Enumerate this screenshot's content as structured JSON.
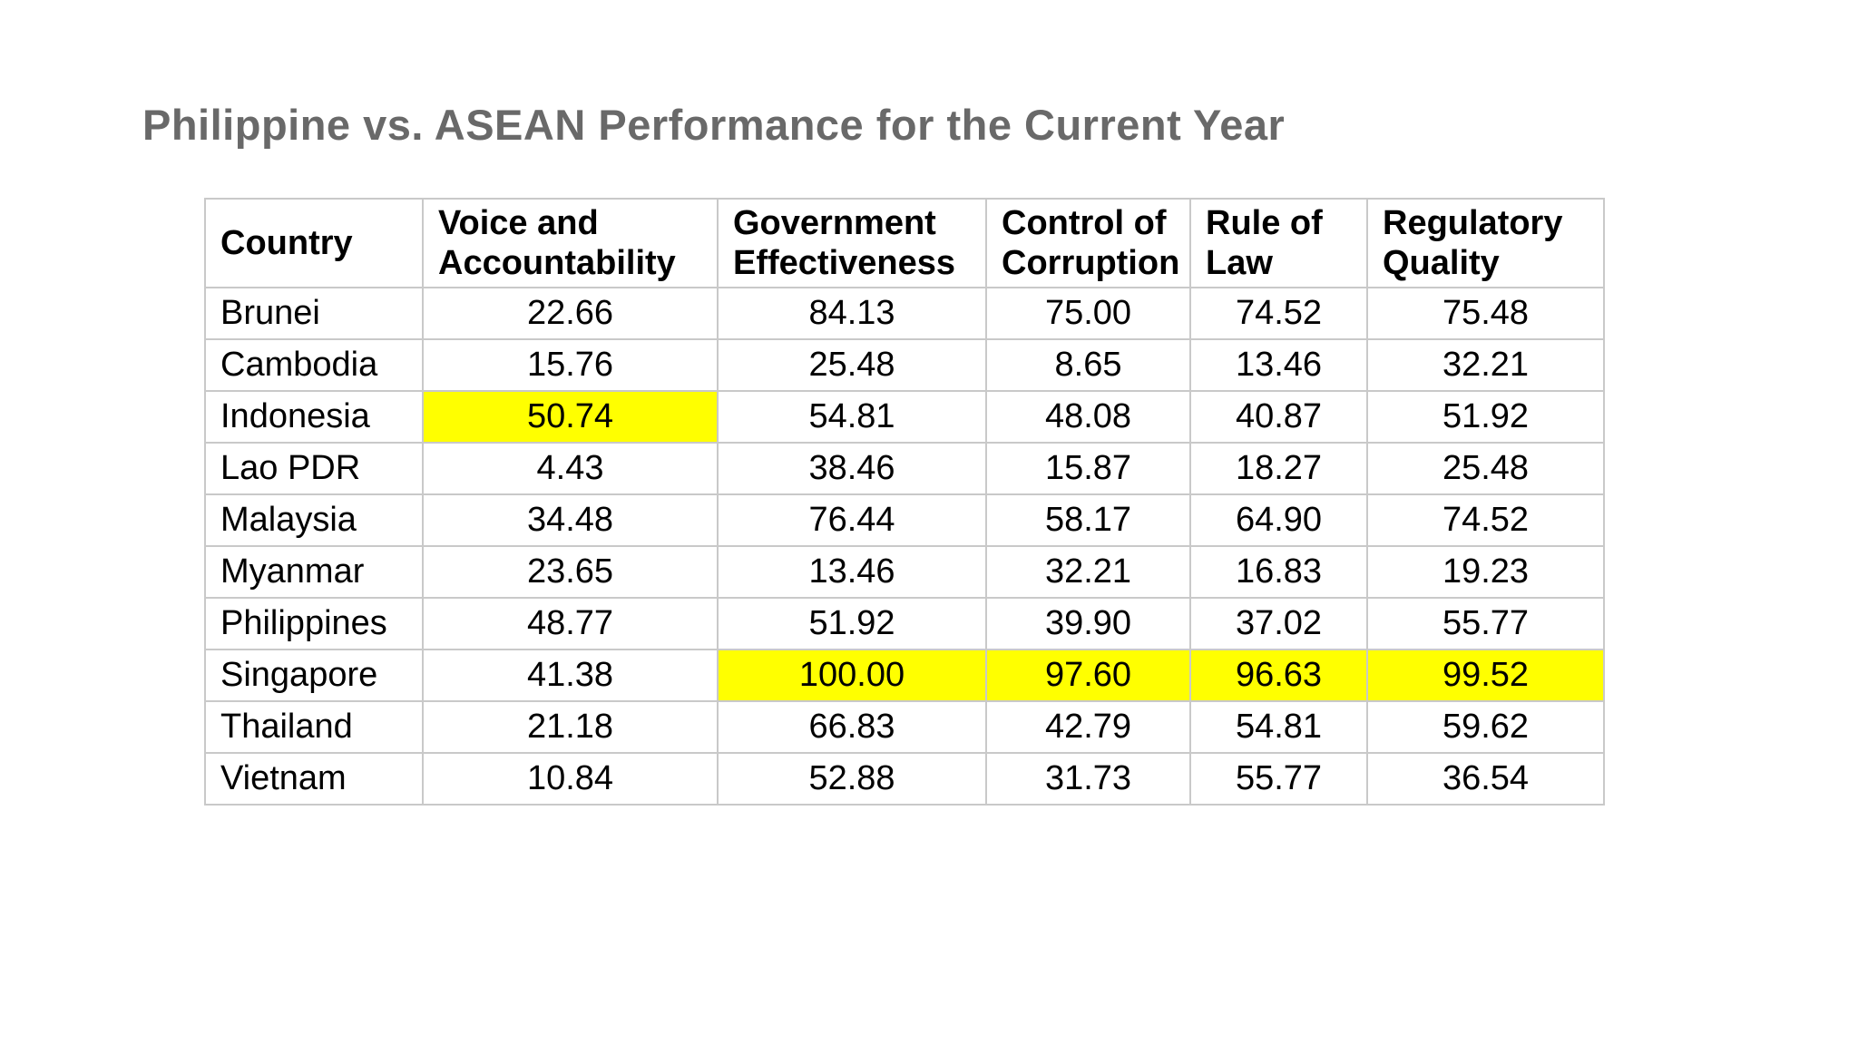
{
  "title": "Philippine vs. ASEAN Performance for the Current Year",
  "colors": {
    "title_text": "#696969",
    "table_border": "#c9c9c9",
    "cell_text": "#000000",
    "highlight": "#ffff00",
    "background": "#ffffff"
  },
  "table": {
    "columns": [
      {
        "key": "country",
        "label": "Country"
      },
      {
        "key": "voice",
        "label": "Voice and\nAccountability"
      },
      {
        "key": "gov",
        "label": "Government\nEffectiveness"
      },
      {
        "key": "control",
        "label": "Control of\nCorruption"
      },
      {
        "key": "rule",
        "label": "Rule of\nLaw"
      },
      {
        "key": "reg",
        "label": "Regulatory\nQuality"
      }
    ],
    "rows": [
      {
        "country": "Brunei",
        "voice": "22.66",
        "gov": "84.13",
        "control": "75.00",
        "rule": "74.52",
        "reg": "75.48",
        "highlights": []
      },
      {
        "country": "Cambodia",
        "voice": "15.76",
        "gov": "25.48",
        "control": "8.65",
        "rule": "13.46",
        "reg": "32.21",
        "highlights": []
      },
      {
        "country": "Indonesia",
        "voice": "50.74",
        "gov": "54.81",
        "control": "48.08",
        "rule": "40.87",
        "reg": "51.92",
        "highlights": [
          "voice"
        ]
      },
      {
        "country": "Lao PDR",
        "voice": "4.43",
        "gov": "38.46",
        "control": "15.87",
        "rule": "18.27",
        "reg": "25.48",
        "highlights": []
      },
      {
        "country": "Malaysia",
        "voice": "34.48",
        "gov": "76.44",
        "control": "58.17",
        "rule": "64.90",
        "reg": "74.52",
        "highlights": []
      },
      {
        "country": "Myanmar",
        "voice": "23.65",
        "gov": "13.46",
        "control": "32.21",
        "rule": "16.83",
        "reg": "19.23",
        "highlights": []
      },
      {
        "country": "Philippines",
        "voice": "48.77",
        "gov": "51.92",
        "control": "39.90",
        "rule": "37.02",
        "reg": "55.77",
        "highlights": []
      },
      {
        "country": "Singapore",
        "voice": "41.38",
        "gov": "100.00",
        "control": "97.60",
        "rule": "96.63",
        "reg": "99.52",
        "highlights": [
          "gov",
          "control",
          "rule",
          "reg"
        ]
      },
      {
        "country": "Thailand",
        "voice": "21.18",
        "gov": "66.83",
        "control": "42.79",
        "rule": "54.81",
        "reg": "59.62",
        "highlights": []
      },
      {
        "country": "Vietnam",
        "voice": "10.84",
        "gov": "52.88",
        "control": "31.73",
        "rule": "55.77",
        "reg": "36.54",
        "highlights": []
      }
    ]
  },
  "chart_data": {
    "type": "table",
    "title": "Philippine vs. ASEAN Performance for the Current Year",
    "columns": [
      "Country",
      "Voice and Accountability",
      "Government Effectiveness",
      "Control of Corruption",
      "Rule of Law",
      "Regulatory Quality"
    ],
    "rows": [
      [
        "Brunei",
        22.66,
        84.13,
        75.0,
        74.52,
        75.48
      ],
      [
        "Cambodia",
        15.76,
        25.48,
        8.65,
        13.46,
        32.21
      ],
      [
        "Indonesia",
        50.74,
        54.81,
        48.08,
        40.87,
        51.92
      ],
      [
        "Lao PDR",
        4.43,
        38.46,
        15.87,
        18.27,
        25.48
      ],
      [
        "Malaysia",
        34.48,
        76.44,
        58.17,
        64.9,
        74.52
      ],
      [
        "Myanmar",
        23.65,
        13.46,
        32.21,
        16.83,
        19.23
      ],
      [
        "Philippines",
        48.77,
        51.92,
        39.9,
        37.02,
        55.77
      ],
      [
        "Singapore",
        41.38,
        100.0,
        97.6,
        96.63,
        99.52
      ],
      [
        "Thailand",
        21.18,
        66.83,
        42.79,
        54.81,
        59.62
      ],
      [
        "Vietnam",
        10.84,
        52.88,
        31.73,
        55.77,
        36.54
      ]
    ],
    "highlighted_cells": [
      [
        "Indonesia",
        "Voice and Accountability"
      ],
      [
        "Singapore",
        "Government Effectiveness"
      ],
      [
        "Singapore",
        "Control of Corruption"
      ],
      [
        "Singapore",
        "Rule of Law"
      ],
      [
        "Singapore",
        "Regulatory Quality"
      ]
    ],
    "highlight_color": "#ffff00",
    "value_range": [
      0,
      100
    ]
  }
}
